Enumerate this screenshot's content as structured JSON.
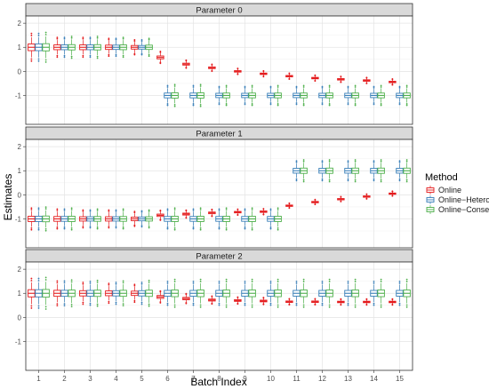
{
  "chart_data": {
    "type": "boxplot",
    "ylabel": "Estimates",
    "xlabel": "Batch Index",
    "categories": [
      "1",
      "2",
      "3",
      "4",
      "5",
      "6",
      "7",
      "8",
      "9",
      "10",
      "11",
      "12",
      "13",
      "14",
      "15"
    ],
    "ylim": [
      -2.2,
      2.3
    ],
    "yticks": [
      "-1",
      "0",
      "1",
      "2"
    ],
    "grid": true,
    "legend": {
      "title": "Method",
      "position": "right",
      "entries": [
        "Online",
        "Online−Hetero",
        "Online−Conser"
      ]
    },
    "colors": {
      "Online": "#e41a1c",
      "Online-Hetero": "#377eb8",
      "Online-Conser": "#4daf4a"
    },
    "panels": [
      {
        "title": "Parameter 0",
        "series": [
          {
            "name": "Online",
            "median": [
              1.0,
              1.0,
              1.0,
              1.0,
              1.0,
              0.58,
              0.3,
              0.15,
              0.0,
              -0.1,
              -0.2,
              -0.28,
              -0.33,
              -0.38,
              -0.44
            ],
            "iqr": [
              0.28,
              0.2,
              0.2,
              0.18,
              0.15,
              0.12,
              0.08,
              0.07,
              0.06,
              0.06,
              0.06,
              0.06,
              0.06,
              0.06,
              0.06
            ]
          },
          {
            "name": "Online−Hetero",
            "median": [
              1.0,
              1.0,
              1.0,
              1.0,
              1.0,
              -1.0,
              -1.0,
              -1.0,
              -1.0,
              -1.0,
              -1.0,
              -1.0,
              -1.0,
              -1.0,
              -1.0
            ],
            "iqr": [
              0.28,
              0.2,
              0.2,
              0.18,
              0.15,
              0.2,
              0.2,
              0.18,
              0.18,
              0.18,
              0.18,
              0.18,
              0.18,
              0.18,
              0.18
            ]
          },
          {
            "name": "Online−Conser",
            "median": [
              1.0,
              1.0,
              1.0,
              1.0,
              1.0,
              -1.0,
              -1.0,
              -1.0,
              -1.0,
              -1.0,
              -1.0,
              -1.0,
              -1.0,
              -1.0,
              -1.0
            ],
            "iqr": [
              0.3,
              0.22,
              0.22,
              0.2,
              0.18,
              0.22,
              0.22,
              0.2,
              0.2,
              0.2,
              0.2,
              0.2,
              0.2,
              0.2,
              0.2
            ]
          }
        ]
      },
      {
        "title": "Parameter 1",
        "series": [
          {
            "name": "Online",
            "median": [
              -1.0,
              -1.0,
              -1.0,
              -1.0,
              -1.0,
              -0.85,
              -0.8,
              -0.75,
              -0.72,
              -0.7,
              -0.45,
              -0.3,
              -0.18,
              -0.07,
              0.05
            ],
            "iqr": [
              0.22,
              0.2,
              0.18,
              0.18,
              0.15,
              0.1,
              0.08,
              0.07,
              0.06,
              0.06,
              0.05,
              0.05,
              0.05,
              0.05,
              0.05
            ]
          },
          {
            "name": "Online−Hetero",
            "median": [
              -1.0,
              -1.0,
              -1.0,
              -1.0,
              -1.0,
              -1.0,
              -1.0,
              -1.0,
              -1.0,
              -1.0,
              1.0,
              1.0,
              1.0,
              1.0,
              1.0
            ],
            "iqr": [
              0.22,
              0.2,
              0.18,
              0.18,
              0.16,
              0.2,
              0.2,
              0.2,
              0.2,
              0.2,
              0.2,
              0.2,
              0.2,
              0.2,
              0.2
            ]
          },
          {
            "name": "Online−Conser",
            "median": [
              -1.0,
              -1.0,
              -1.0,
              -1.0,
              -1.0,
              -1.0,
              -1.0,
              -1.0,
              -1.0,
              -1.0,
              1.0,
              1.0,
              1.0,
              1.0,
              1.0
            ],
            "iqr": [
              0.24,
              0.22,
              0.2,
              0.2,
              0.18,
              0.22,
              0.22,
              0.22,
              0.22,
              0.22,
              0.22,
              0.22,
              0.22,
              0.22,
              0.22
            ]
          }
        ]
      },
      {
        "title": "Parameter 2",
        "series": [
          {
            "name": "Online",
            "median": [
              1.0,
              1.0,
              1.0,
              1.0,
              1.0,
              0.85,
              0.78,
              0.72,
              0.7,
              0.68,
              0.65,
              0.65,
              0.64,
              0.64,
              0.64
            ],
            "iqr": [
              0.3,
              0.25,
              0.22,
              0.2,
              0.18,
              0.12,
              0.1,
              0.08,
              0.07,
              0.07,
              0.06,
              0.06,
              0.06,
              0.06,
              0.06
            ]
          },
          {
            "name": "Online−Hetero",
            "median": [
              1.0,
              1.0,
              1.0,
              1.0,
              1.0,
              1.0,
              1.0,
              1.0,
              1.0,
              1.0,
              1.0,
              1.0,
              1.0,
              1.0,
              1.0
            ],
            "iqr": [
              0.3,
              0.25,
              0.24,
              0.22,
              0.22,
              0.24,
              0.24,
              0.24,
              0.24,
              0.24,
              0.24,
              0.24,
              0.24,
              0.24,
              0.24
            ]
          },
          {
            "name": "Online−Conser",
            "median": [
              1.0,
              1.0,
              1.0,
              1.0,
              1.0,
              1.0,
              1.0,
              1.0,
              1.0,
              1.0,
              1.0,
              1.0,
              1.0,
              1.0,
              1.0
            ],
            "iqr": [
              0.32,
              0.27,
              0.26,
              0.25,
              0.26,
              0.28,
              0.28,
              0.28,
              0.28,
              0.28,
              0.28,
              0.28,
              0.28,
              0.28,
              0.28
            ]
          }
        ]
      }
    ]
  }
}
